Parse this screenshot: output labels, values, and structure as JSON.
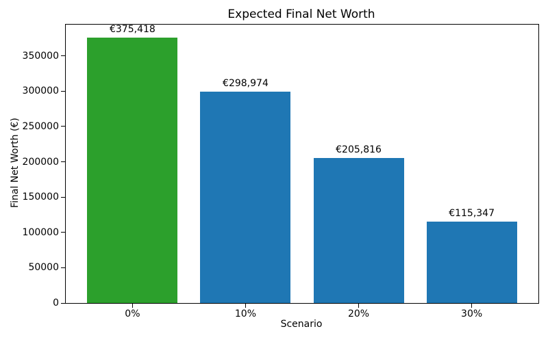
{
  "chart_data": {
    "type": "bar",
    "title": "Expected Final Net Worth",
    "xlabel": "Scenario",
    "ylabel": "Final Net Worth (€)",
    "categories": [
      "0%",
      "10%",
      "20%",
      "30%"
    ],
    "values": [
      375418,
      298974,
      205816,
      115347
    ],
    "bar_labels": [
      "€375,418",
      "€298,974",
      "€205,816",
      "€115,347"
    ],
    "bar_colors": [
      "#2ca02c",
      "#1f77b4",
      "#1f77b4",
      "#1f77b4"
    ],
    "highlight_color": "#2ca02c",
    "default_bar_color": "#1f77b4",
    "ylim": [
      0,
      394189
    ],
    "yticks": [
      0,
      50000,
      100000,
      150000,
      200000,
      250000,
      300000,
      350000
    ],
    "bar_width_fraction": 0.8,
    "x_margin_fraction": 0.05,
    "grid": false,
    "legend_position": "none"
  }
}
